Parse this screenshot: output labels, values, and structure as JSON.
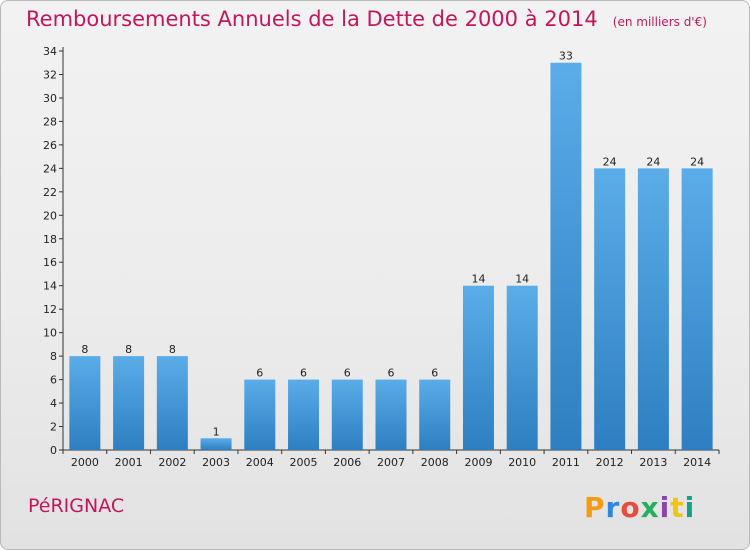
{
  "header": {
    "title": "Remboursements Annuels de la Dette de 2000 à 2014",
    "unit": "(en milliers d'€)"
  },
  "footer": {
    "city": "PéRIGNAC",
    "brand": "Proxiti"
  },
  "colors": {
    "title": "#c2185b",
    "bar_top": "#5aade8",
    "bar_bottom": "#2d7fc1",
    "logo": [
      "#f39c12",
      "#2e86de",
      "#e74c3c",
      "#27ae60",
      "#8e44ad",
      "#f1c40f",
      "#16a085"
    ]
  },
  "chart_data": {
    "type": "bar",
    "categories": [
      "2000",
      "2001",
      "2002",
      "2003",
      "2004",
      "2005",
      "2006",
      "2007",
      "2008",
      "2009",
      "2010",
      "2011",
      "2012",
      "2013",
      "2014"
    ],
    "values": [
      8,
      8,
      8,
      1,
      6,
      6,
      6,
      6,
      6,
      14,
      14,
      33,
      24,
      24,
      24
    ],
    "ylim": [
      0,
      34
    ],
    "yticks": [
      0,
      2,
      4,
      6,
      8,
      10,
      12,
      14,
      16,
      18,
      20,
      22,
      24,
      26,
      28,
      30,
      32,
      34
    ],
    "grid": false,
    "legend": "none"
  }
}
